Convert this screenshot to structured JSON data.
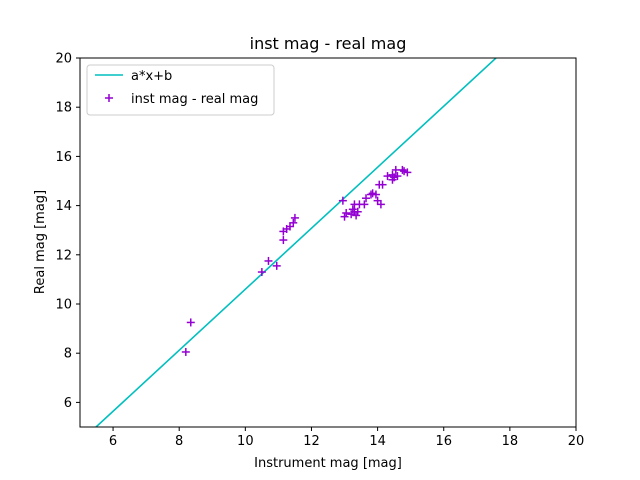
{
  "chart_data": {
    "type": "scatter",
    "title": "inst mag - real mag",
    "xlabel": "Instrument mag [mag]",
    "ylabel": "Real mag [mag]",
    "xlim": [
      5,
      20
    ],
    "ylim": [
      5,
      20
    ],
    "xticks": [
      6,
      8,
      10,
      12,
      14,
      16,
      18,
      20
    ],
    "yticks": [
      6,
      8,
      10,
      12,
      14,
      16,
      18,
      20
    ],
    "grid": false,
    "legend_position": "top-left",
    "fit_line": {
      "name": "a*x+b",
      "slope": 1.24,
      "intercept": -1.8,
      "color": "#00bfbf"
    },
    "series": [
      {
        "name": "inst mag - real mag",
        "marker": "plus",
        "color": "#9400d3",
        "points": [
          [
            8.2,
            8.05
          ],
          [
            8.35,
            9.25
          ],
          [
            10.5,
            11.3
          ],
          [
            10.7,
            11.75
          ],
          [
            10.95,
            11.55
          ],
          [
            11.15,
            12.6
          ],
          [
            11.15,
            12.95
          ],
          [
            11.25,
            13.05
          ],
          [
            11.35,
            13.15
          ],
          [
            11.45,
            13.3
          ],
          [
            11.5,
            13.5
          ],
          [
            12.95,
            14.2
          ],
          [
            13.0,
            13.55
          ],
          [
            13.05,
            13.7
          ],
          [
            13.2,
            13.65
          ],
          [
            13.25,
            13.85
          ],
          [
            13.3,
            13.75
          ],
          [
            13.3,
            14.05
          ],
          [
            13.35,
            13.6
          ],
          [
            13.4,
            13.75
          ],
          [
            13.45,
            14.05
          ],
          [
            13.6,
            14.05
          ],
          [
            13.65,
            14.3
          ],
          [
            13.8,
            14.45
          ],
          [
            13.85,
            14.5
          ],
          [
            13.95,
            14.45
          ],
          [
            14.0,
            14.2
          ],
          [
            14.05,
            14.85
          ],
          [
            14.1,
            14.05
          ],
          [
            14.15,
            14.85
          ],
          [
            14.3,
            15.2
          ],
          [
            14.45,
            15.05
          ],
          [
            14.45,
            15.25
          ],
          [
            14.5,
            15.15
          ],
          [
            14.55,
            15.45
          ],
          [
            14.6,
            15.2
          ],
          [
            14.75,
            15.45
          ],
          [
            14.8,
            15.4
          ],
          [
            14.9,
            15.35
          ]
        ]
      }
    ]
  }
}
